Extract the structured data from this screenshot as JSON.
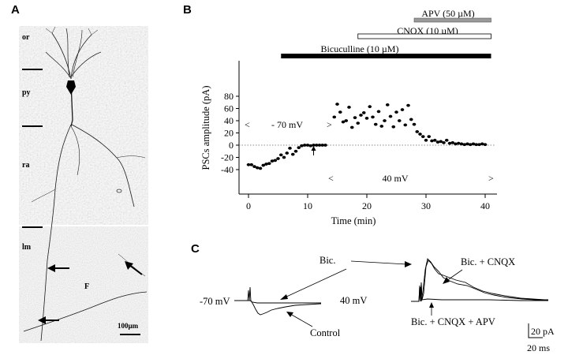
{
  "panels": {
    "A": {
      "letter": "A",
      "layers": [
        "or",
        "py",
        "ra",
        "lm"
      ],
      "fiber_label": "F",
      "scale_bar": "100µm"
    },
    "B": {
      "letter": "B",
      "drugs": [
        {
          "label": "APV (50 µM)",
          "fill": "#9a9a9a"
        },
        {
          "label": "CNQX (10 µM)",
          "fill": "#ffffff"
        },
        {
          "label": "Bicuculline (10 µM)",
          "fill": "#000000"
        }
      ],
      "voltage_neg": "- 70 mV",
      "voltage_pos": "40 mV",
      "bracket_left": "<",
      "bracket_right": ">"
    },
    "C": {
      "letter": "C",
      "left_voltage": "-70 mV",
      "right_voltage": "40 mV",
      "label_bic": "Bic.",
      "label_control": "Control",
      "label_bic_cnqx": "Bic. + CNQX",
      "label_bic_cnqx_apv": "Bic. + CNQX + APV",
      "scale_y": "20 pA",
      "scale_x": "20 ms"
    }
  },
  "chart_data": {
    "type": "scatter",
    "title": "",
    "xlabel": "Time (min)",
    "ylabel": "PSCs amplitude (pA)",
    "xlim": [
      -1,
      42
    ],
    "ylim": [
      -45,
      80
    ],
    "xticks": [
      0,
      10,
      20,
      30,
      40
    ],
    "yticks": [
      -40,
      -20,
      0,
      20,
      40,
      60,
      80
    ],
    "grid": false,
    "zero_line": "dotted",
    "drug_periods": [
      {
        "drug": "Bicuculline (10 µM)",
        "start": 5.5,
        "end": 41
      },
      {
        "drug": "CNQX (10 µM)",
        "start": 18.5,
        "end": 41
      },
      {
        "drug": "APV (50 µM)",
        "start": 28,
        "end": 41
      }
    ],
    "holding_potentials": [
      {
        "label": "- 70 mV",
        "start": 0,
        "end": 13
      },
      {
        "label": "40 mV",
        "start": 14.5,
        "end": 41
      }
    ],
    "arrow_at": {
      "x": 11,
      "y": -9
    },
    "series": [
      {
        "x": [
          0,
          0.5,
          1,
          1.5,
          2,
          2.5,
          3,
          3.5,
          4,
          4.5,
          5,
          5.5,
          6,
          6.5,
          7,
          7.5,
          8,
          8.5,
          9,
          9.5,
          10,
          10.5,
          11,
          11.5,
          12,
          12.5,
          13,
          14.5,
          15,
          15.5,
          16,
          16.5,
          17,
          17.5,
          18,
          18.5,
          19,
          19.5,
          20,
          20.5,
          21,
          21.5,
          22,
          22.5,
          23,
          23.5,
          24,
          24.5,
          25,
          25.5,
          26,
          26.5,
          27,
          27.5,
          28,
          28.5,
          29,
          29.5,
          30,
          30.5,
          31,
          31.5,
          32,
          32.5,
          33,
          33.5,
          34,
          34.5,
          35,
          35.5,
          36,
          36.5,
          37,
          37.5,
          38,
          38.5,
          39,
          39.5,
          40
        ],
        "y": [
          -32,
          -32,
          -35,
          -37,
          -38,
          -33,
          -31,
          -30,
          -26,
          -25,
          -22,
          -16,
          -20,
          -13,
          -5,
          -15,
          -10,
          -4,
          -1,
          0,
          0,
          -1,
          0,
          0,
          0,
          0,
          0,
          46,
          67,
          54,
          38,
          40,
          62,
          29,
          45,
          36,
          49,
          53,
          44,
          63,
          46,
          34,
          55,
          31,
          40,
          66,
          47,
          30,
          54,
          40,
          58,
          33,
          65,
          42,
          34,
          22,
          18,
          14,
          8,
          14,
          7,
          8,
          5,
          6,
          4,
          8,
          3,
          4,
          2,
          3,
          2,
          1,
          2,
          1,
          2,
          1,
          1,
          2,
          1
        ]
      }
    ]
  }
}
